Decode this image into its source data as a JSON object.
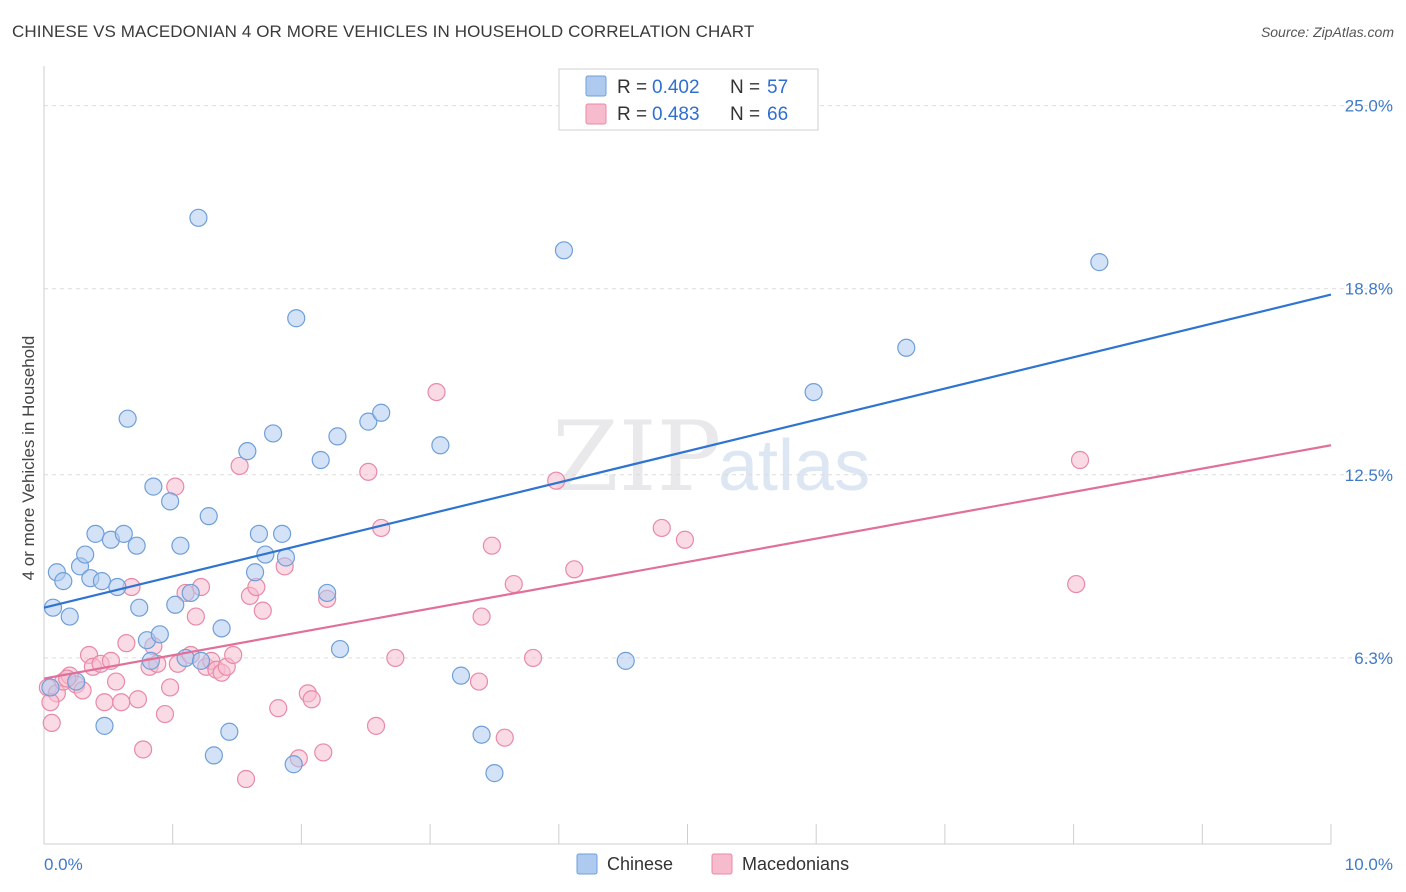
{
  "title": "CHINESE VS MACEDONIAN 4 OR MORE VEHICLES IN HOUSEHOLD CORRELATION CHART",
  "source": "Source: ZipAtlas.com",
  "watermark": {
    "zip": "ZIP",
    "atlas": "atlas"
  },
  "colors": {
    "chinese_fill": "#aecbef",
    "chinese_stroke": "#6f9fd9",
    "chinese_line": "#2e74d0",
    "macedonian_fill": "#f6bccd",
    "macedonian_stroke": "#e88aa7",
    "macedonian_line": "#e0709a",
    "grid": "#dcdcdc",
    "tick_text": "#3f7ac9"
  },
  "legend": {
    "rows": [
      {
        "r_label": "R =",
        "r_value": "0.402",
        "n_label": "N =",
        "n_value": "57"
      },
      {
        "r_label": "R =",
        "r_value": "0.483",
        "n_label": "N =",
        "n_value": "66"
      }
    ]
  },
  "bottom_legend": [
    "Chinese",
    "Macedonians"
  ],
  "chart_data": {
    "type": "scatter",
    "title": "CHINESE VS MACEDONIAN 4 OR MORE VEHICLES IN HOUSEHOLD CORRELATION CHART",
    "xlabel": "",
    "ylabel": "4 or more Vehicles in Household",
    "xlim": [
      0,
      10
    ],
    "ylim": [
      0,
      25.9
    ],
    "x_tick_labels": [
      "0.0%",
      "10.0%"
    ],
    "x_tick_values": [
      0,
      10
    ],
    "y_tick_labels": [
      "6.3%",
      "12.5%",
      "18.8%",
      "25.0%"
    ],
    "y_tick_values": [
      6.3,
      12.5,
      18.8,
      25.0
    ],
    "legend_position": "top-center",
    "series": [
      {
        "name": "Chinese",
        "r": 0.402,
        "n": 57,
        "trend": {
          "x": [
            0,
            10
          ],
          "y": [
            8.0,
            18.6
          ]
        },
        "points": [
          {
            "x": 0.05,
            "y": 5.3
          },
          {
            "x": 0.07,
            "y": 8.0
          },
          {
            "x": 0.1,
            "y": 9.2
          },
          {
            "x": 0.15,
            "y": 8.9
          },
          {
            "x": 0.2,
            "y": 7.7
          },
          {
            "x": 0.25,
            "y": 5.5
          },
          {
            "x": 0.28,
            "y": 9.4
          },
          {
            "x": 0.32,
            "y": 9.8
          },
          {
            "x": 0.36,
            "y": 9.0
          },
          {
            "x": 0.4,
            "y": 10.5
          },
          {
            "x": 0.45,
            "y": 8.9
          },
          {
            "x": 0.47,
            "y": 4.0
          },
          {
            "x": 0.52,
            "y": 10.3
          },
          {
            "x": 0.57,
            "y": 8.7
          },
          {
            "x": 0.62,
            "y": 10.5
          },
          {
            "x": 0.65,
            "y": 14.4
          },
          {
            "x": 0.72,
            "y": 10.1
          },
          {
            "x": 0.74,
            "y": 8.0
          },
          {
            "x": 0.8,
            "y": 6.9
          },
          {
            "x": 0.83,
            "y": 6.2
          },
          {
            "x": 0.85,
            "y": 12.1
          },
          {
            "x": 0.9,
            "y": 7.1
          },
          {
            "x": 0.98,
            "y": 11.6
          },
          {
            "x": 1.02,
            "y": 8.1
          },
          {
            "x": 1.06,
            "y": 10.1
          },
          {
            "x": 1.1,
            "y": 6.3
          },
          {
            "x": 1.14,
            "y": 8.5
          },
          {
            "x": 1.2,
            "y": 21.2
          },
          {
            "x": 1.22,
            "y": 6.2
          },
          {
            "x": 1.28,
            "y": 11.1
          },
          {
            "x": 1.32,
            "y": 3.0
          },
          {
            "x": 1.38,
            "y": 7.3
          },
          {
            "x": 1.44,
            "y": 3.8
          },
          {
            "x": 1.58,
            "y": 13.3
          },
          {
            "x": 1.64,
            "y": 9.2
          },
          {
            "x": 1.67,
            "y": 10.5
          },
          {
            "x": 1.72,
            "y": 9.8
          },
          {
            "x": 1.78,
            "y": 13.9
          },
          {
            "x": 1.85,
            "y": 10.5
          },
          {
            "x": 1.88,
            "y": 9.7
          },
          {
            "x": 1.94,
            "y": 2.7
          },
          {
            "x": 1.96,
            "y": 17.8
          },
          {
            "x": 2.15,
            "y": 13.0
          },
          {
            "x": 2.2,
            "y": 8.5
          },
          {
            "x": 2.28,
            "y": 13.8
          },
          {
            "x": 2.3,
            "y": 6.6
          },
          {
            "x": 2.52,
            "y": 14.3
          },
          {
            "x": 2.62,
            "y": 14.6
          },
          {
            "x": 3.08,
            "y": 13.5
          },
          {
            "x": 3.24,
            "y": 5.7
          },
          {
            "x": 3.4,
            "y": 3.7
          },
          {
            "x": 3.5,
            "y": 2.4
          },
          {
            "x": 4.04,
            "y": 20.1
          },
          {
            "x": 4.52,
            "y": 6.2
          },
          {
            "x": 5.98,
            "y": 15.3
          },
          {
            "x": 6.7,
            "y": 16.8
          },
          {
            "x": 8.2,
            "y": 19.7
          }
        ]
      },
      {
        "name": "Macedonians",
        "r": 0.483,
        "n": 66,
        "trend": {
          "x": [
            0,
            10
          ],
          "y": [
            5.6,
            13.5
          ]
        },
        "points": [
          {
            "x": 0.03,
            "y": 5.3
          },
          {
            "x": 0.06,
            "y": 4.1
          },
          {
            "x": 0.1,
            "y": 5.1
          },
          {
            "x": 0.15,
            "y": 5.5
          },
          {
            "x": 0.2,
            "y": 5.7
          },
          {
            "x": 0.25,
            "y": 5.4
          },
          {
            "x": 0.3,
            "y": 5.2
          },
          {
            "x": 0.35,
            "y": 6.4
          },
          {
            "x": 0.38,
            "y": 6.0
          },
          {
            "x": 0.44,
            "y": 6.1
          },
          {
            "x": 0.47,
            "y": 4.8
          },
          {
            "x": 0.52,
            "y": 6.2
          },
          {
            "x": 0.56,
            "y": 5.5
          },
          {
            "x": 0.6,
            "y": 4.8
          },
          {
            "x": 0.64,
            "y": 6.8
          },
          {
            "x": 0.68,
            "y": 8.7
          },
          {
            "x": 0.73,
            "y": 4.9
          },
          {
            "x": 0.77,
            "y": 3.2
          },
          {
            "x": 0.82,
            "y": 6.0
          },
          {
            "x": 0.85,
            "y": 6.7
          },
          {
            "x": 0.88,
            "y": 6.1
          },
          {
            "x": 0.94,
            "y": 4.4
          },
          {
            "x": 0.98,
            "y": 5.3
          },
          {
            "x": 1.02,
            "y": 12.1
          },
          {
            "x": 1.04,
            "y": 6.1
          },
          {
            "x": 1.1,
            "y": 8.5
          },
          {
            "x": 1.14,
            "y": 6.4
          },
          {
            "x": 1.18,
            "y": 7.7
          },
          {
            "x": 1.22,
            "y": 8.7
          },
          {
            "x": 1.26,
            "y": 6.0
          },
          {
            "x": 1.3,
            "y": 6.2
          },
          {
            "x": 1.34,
            "y": 5.9
          },
          {
            "x": 1.38,
            "y": 5.8
          },
          {
            "x": 1.42,
            "y": 6.0
          },
          {
            "x": 1.47,
            "y": 6.4
          },
          {
            "x": 1.52,
            "y": 12.8
          },
          {
            "x": 1.57,
            "y": 2.2
          },
          {
            "x": 1.6,
            "y": 8.4
          },
          {
            "x": 1.65,
            "y": 8.7
          },
          {
            "x": 1.7,
            "y": 7.9
          },
          {
            "x": 1.82,
            "y": 4.6
          },
          {
            "x": 1.87,
            "y": 9.4
          },
          {
            "x": 1.98,
            "y": 2.9
          },
          {
            "x": 2.05,
            "y": 5.1
          },
          {
            "x": 2.08,
            "y": 4.9
          },
          {
            "x": 2.17,
            "y": 3.1
          },
          {
            "x": 2.2,
            "y": 8.3
          },
          {
            "x": 2.52,
            "y": 12.6
          },
          {
            "x": 2.58,
            "y": 4.0
          },
          {
            "x": 2.62,
            "y": 10.7
          },
          {
            "x": 2.73,
            "y": 6.3
          },
          {
            "x": 3.05,
            "y": 15.3
          },
          {
            "x": 3.38,
            "y": 5.5
          },
          {
            "x": 3.4,
            "y": 7.7
          },
          {
            "x": 3.48,
            "y": 10.1
          },
          {
            "x": 3.58,
            "y": 3.6
          },
          {
            "x": 3.65,
            "y": 8.8
          },
          {
            "x": 3.8,
            "y": 6.3
          },
          {
            "x": 3.98,
            "y": 12.3
          },
          {
            "x": 4.12,
            "y": 9.3
          },
          {
            "x": 4.8,
            "y": 10.7
          },
          {
            "x": 4.98,
            "y": 10.3
          },
          {
            "x": 8.05,
            "y": 13.0
          },
          {
            "x": 8.02,
            "y": 8.8
          },
          {
            "x": 0.05,
            "y": 4.8
          },
          {
            "x": 0.18,
            "y": 5.6
          }
        ]
      }
    ]
  }
}
